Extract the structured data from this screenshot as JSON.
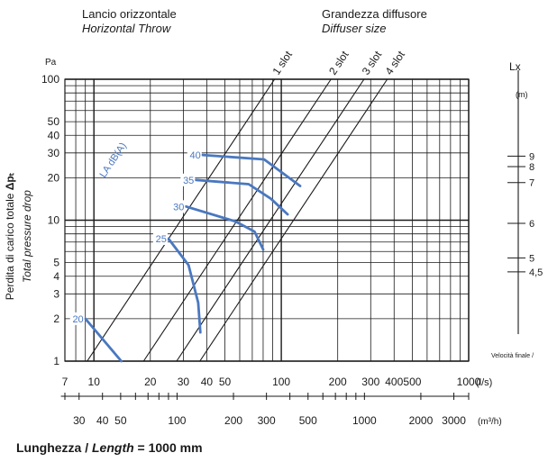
{
  "header": {
    "left_line1": "Lancio orizzontale",
    "left_line2": "Horizontal Throw",
    "right_line1": "Grandezza diffusore",
    "right_line2": "Diffuser size"
  },
  "footer": {
    "prefix": "Lunghezza / ",
    "italic": "Length",
    "suffix": " = 1000 mm"
  },
  "colors": {
    "grid": "#1a1a1a",
    "curve": "#4a78c0"
  },
  "chart_data": {
    "type": "line",
    "x_scale": "log",
    "y_scale": "log",
    "xlim": [
      7,
      1000
    ],
    "ylim": [
      1,
      100
    ],
    "x_unit": "(l/s)",
    "y_unit": "Pa",
    "x_ticks": [
      {
        "v": 7,
        "label": "7"
      },
      {
        "v": 10,
        "label": "10"
      },
      {
        "v": 20,
        "label": "20"
      },
      {
        "v": 30,
        "label": "30"
      },
      {
        "v": 40,
        "label": "40"
      },
      {
        "v": 50,
        "label": "50"
      },
      {
        "v": 100,
        "label": "100"
      },
      {
        "v": 200,
        "label": "200"
      },
      {
        "v": 300,
        "label": "300"
      },
      {
        "v": 400,
        "label": "400"
      },
      {
        "v": 500,
        "label": "500"
      },
      {
        "v": 1000,
        "label": "1000"
      }
    ],
    "y_ticks": [
      {
        "v": 1,
        "label": "1"
      },
      {
        "v": 2,
        "label": "2"
      },
      {
        "v": 3,
        "label": "3"
      },
      {
        "v": 4,
        "label": "4"
      },
      {
        "v": 5,
        "label": "5"
      },
      {
        "v": 10,
        "label": "10"
      },
      {
        "v": 20,
        "label": "20"
      },
      {
        "v": 30,
        "label": "30"
      },
      {
        "v": 40,
        "label": "40"
      },
      {
        "v": 50,
        "label": "50"
      },
      {
        "v": 100,
        "label": "100"
      }
    ],
    "x2_unit": "(m³/h)",
    "x2_ticks": [
      {
        "v": 30,
        "label": "30"
      },
      {
        "v": 40,
        "label": "40"
      },
      {
        "v": 50,
        "label": "50"
      },
      {
        "v": 100,
        "label": "100"
      },
      {
        "v": 200,
        "label": "200"
      },
      {
        "v": 300,
        "label": "300"
      },
      {
        "v": 500,
        "label": "500"
      },
      {
        "v": 1000,
        "label": "1000"
      },
      {
        "v": 2000,
        "label": "2000"
      },
      {
        "v": 3000,
        "label": "3000"
      }
    ],
    "ylabel_line1": "Perdita di carico totale",
    "ylabel_symbol": "Δpₜ",
    "ylabel_line2": "Total pressure drop",
    "size_lines": [
      {
        "name": "1 slot",
        "k": 0.0118
      },
      {
        "name": "2 slot",
        "k": 0.00295
      },
      {
        "name": "3 slot",
        "k": 0.00131
      },
      {
        "name": "4 slot",
        "k": 0.00074
      }
    ],
    "noise_label": "LA dB(A)",
    "noise_curves": [
      {
        "label": "20",
        "points": [
          [
            9,
            2
          ],
          [
            14,
            1
          ]
        ]
      },
      {
        "label": "25",
        "points": [
          [
            25,
            7.4
          ],
          [
            32,
            4.8
          ],
          [
            36,
            2.6
          ],
          [
            37,
            1.6
          ]
        ]
      },
      {
        "label": "30",
        "points": [
          [
            31,
            12.5
          ],
          [
            57,
            9.8
          ],
          [
            72,
            8.3
          ],
          [
            80,
            6.2
          ]
        ]
      },
      {
        "label": "35",
        "points": [
          [
            35,
            19.3
          ],
          [
            67,
            18
          ],
          [
            88,
            14.2
          ],
          [
            108,
            11
          ]
        ]
      },
      {
        "label": "40",
        "points": [
          [
            38,
            29
          ],
          [
            81,
            27
          ],
          [
            126,
            17.5
          ]
        ]
      }
    ],
    "throw_scale": {
      "title": "Lx",
      "unit": "(m)",
      "ticks": [
        {
          "label": "9",
          "pa": 28.5
        },
        {
          "label": "8",
          "pa": 24
        },
        {
          "label": "7",
          "pa": 18.5
        },
        {
          "label": "6",
          "pa": 9.5
        },
        {
          "label": "5",
          "pa": 5.4
        },
        {
          "label": "4,5",
          "pa": 4.3
        }
      ],
      "footnote": "Velocità finale / "
    }
  }
}
